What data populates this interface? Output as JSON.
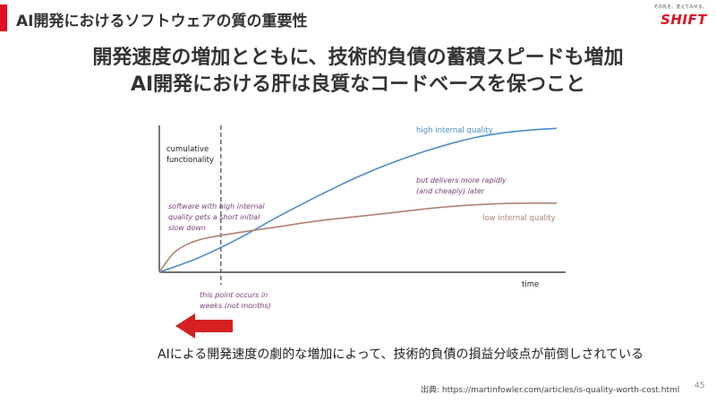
{
  "header": {
    "title": "AI開発におけるソフトウェアの質の重要性"
  },
  "logo": {
    "tagline": "その先を、変えてみせる。",
    "wordmark": "SHIFT"
  },
  "headline": {
    "line1": "開発速度の増加とともに、技術的負債の蓄積スピードも増加",
    "line2": "AI開発における肝は良質なコードベースを保つこと"
  },
  "chart_data": {
    "type": "line",
    "xlabel": "time",
    "ylabel": [
      "cumulative",
      "functionality"
    ],
    "xlim": [
      0,
      1
    ],
    "ylim": [
      0,
      1
    ],
    "series": [
      {
        "name": "high internal quality",
        "color": "#4a8cc8",
        "x": [
          0,
          0.1,
          0.2,
          0.3,
          0.4,
          0.5,
          0.6,
          0.7,
          0.8,
          0.9,
          1.0
        ],
        "y": [
          0,
          0.1,
          0.23,
          0.38,
          0.52,
          0.65,
          0.76,
          0.85,
          0.92,
          0.96,
          0.98
        ]
      },
      {
        "name": "low internal quality",
        "color": "#b08270",
        "x": [
          0,
          0.04,
          0.1,
          0.2,
          0.3,
          0.4,
          0.5,
          0.6,
          0.7,
          0.8,
          0.9,
          1.0
        ],
        "y": [
          0,
          0.14,
          0.22,
          0.27,
          0.31,
          0.35,
          0.38,
          0.41,
          0.44,
          0.46,
          0.47,
          0.47
        ]
      }
    ],
    "marker": {
      "x": 0.155
    },
    "annotations": {
      "slowdown": [
        "software with high internal",
        "quality gets a short initial",
        "slow down"
      ],
      "delivers": [
        "but delivers more rapidly",
        "(and cheaply) later"
      ],
      "point": [
        "this point occurs in",
        "weeks (not months)"
      ]
    },
    "annotation_color": "#7a3e7a",
    "grid": false
  },
  "caption": "AIによる開発速度の劇的な増加によって、技術的負債の損益分岐点が前倒しされている",
  "source": "出典: https://martinfowler.com/articles/is-quality-worth-cost.html",
  "page_number": "45",
  "colors": {
    "accent": "#e01020",
    "arrow": "#d42020"
  }
}
